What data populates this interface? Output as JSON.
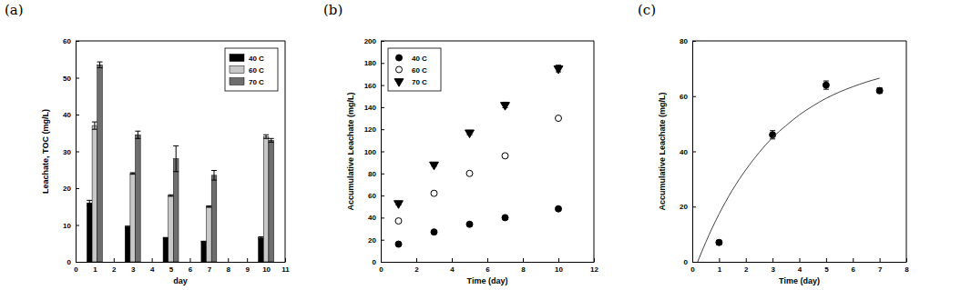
{
  "chart_data": [
    {
      "type": "bar",
      "title": "(a)",
      "x_label": "day",
      "y_label": "Leachate, TOC (mg/L)",
      "x": [
        1,
        3,
        5,
        7,
        10
      ],
      "xlim": [
        0,
        11
      ],
      "xticks": [
        0,
        1,
        2,
        3,
        4,
        5,
        6,
        7,
        8,
        9,
        10,
        11
      ],
      "ylim": [
        0,
        60
      ],
      "yticks": [
        0,
        10,
        20,
        30,
        40,
        50,
        60
      ],
      "legend": "upper right",
      "series": [
        {
          "name": "40 C",
          "color": "#000000",
          "values": [
            16,
            9.5,
            6.5,
            5.5,
            6.5
          ],
          "errors": [
            0.7,
            0.2,
            0.1,
            0.1,
            0.3
          ]
        },
        {
          "name": "60 C",
          "color": "#c8c8c8",
          "values": [
            37,
            24,
            18,
            15,
            34
          ],
          "errors": [
            1,
            0.2,
            0.2,
            0.2,
            0.5
          ]
        },
        {
          "name": "70 C",
          "color": "#6e6e6e",
          "values": [
            53.5,
            34.5,
            28,
            23.5,
            33
          ],
          "errors": [
            0.8,
            1,
            3.5,
            1.3,
            0.5
          ]
        }
      ]
    },
    {
      "type": "scatter",
      "title": "(b)",
      "x_label": "Time (day)",
      "y_label": "Accumulative Leachate (mg/L)",
      "x": [
        1,
        3,
        5,
        7,
        10
      ],
      "xlim": [
        0,
        12
      ],
      "xticks": [
        0,
        2,
        4,
        6,
        8,
        10,
        12
      ],
      "ylim": [
        0,
        200
      ],
      "yticks": [
        0,
        20,
        40,
        60,
        80,
        100,
        120,
        140,
        160,
        180,
        200
      ],
      "legend": "upper left",
      "series": [
        {
          "name": "40 C",
          "color": "#000000",
          "marker": "circle",
          "values": [
            16,
            27,
            34,
            40,
            48
          ],
          "errors": [
            1,
            1,
            1,
            1,
            1.5
          ]
        },
        {
          "name": "60 C",
          "color": "#000000",
          "marker": "open-circle",
          "values": [
            37,
            62,
            80,
            96,
            130
          ],
          "errors": [
            1,
            1.5,
            1,
            1.5,
            1.5
          ]
        },
        {
          "name": "70 C",
          "color": "#000000",
          "marker": "triangle-down",
          "values": [
            53,
            88,
            117,
            142,
            175
          ],
          "errors": [
            1.5,
            1.5,
            2,
            2.5,
            3
          ]
        }
      ]
    },
    {
      "type": "scatter",
      "title": "(c)",
      "x_label": "Time (day)",
      "y_label": "Accumulative Leachate (mg/L)",
      "xlim": [
        0,
        8
      ],
      "xticks": [
        0,
        1,
        2,
        3,
        4,
        5,
        6,
        7,
        8
      ],
      "ylim": [
        0,
        80
      ],
      "yticks": [
        0,
        20,
        40,
        60,
        80
      ],
      "series": [
        {
          "type": "scatter",
          "color": "#000000",
          "marker": "circle",
          "x": [
            1,
            3,
            5,
            7
          ],
          "values": [
            7,
            46,
            64,
            62
          ],
          "errors": [
            0.8,
            1.5,
            1.5,
            1
          ]
        },
        {
          "type": "line",
          "color": "#444444",
          "line_style": "solid",
          "x": [
            0.2,
            0.5,
            1,
            1.5,
            2,
            2.5,
            3,
            3.5,
            4,
            4.5,
            5,
            5.5,
            6,
            6.5,
            7
          ],
          "values": [
            0,
            7,
            17.3,
            26,
            33.3,
            39.6,
            45,
            49.3,
            53.2,
            56.4,
            59.2,
            61.5,
            63.4,
            65.1,
            66.5
          ]
        }
      ]
    }
  ]
}
